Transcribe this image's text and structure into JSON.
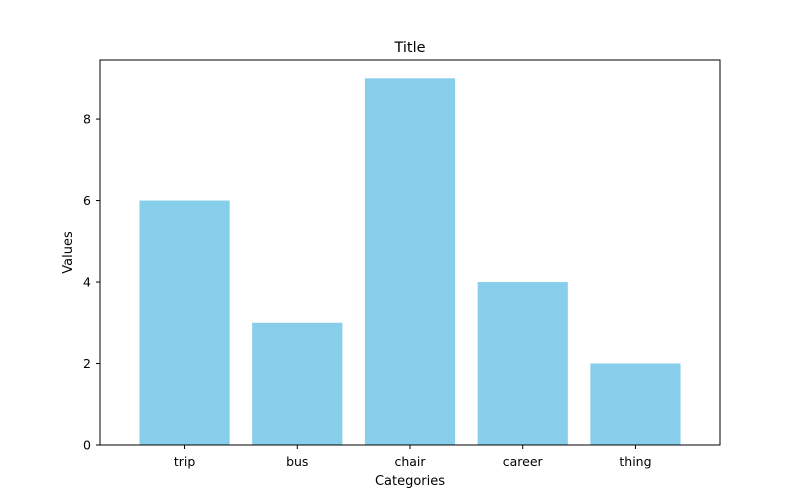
{
  "chart_data": {
    "type": "bar",
    "title": "Title",
    "xlabel": "Categories",
    "ylabel": "Values",
    "categories": [
      "trip",
      "bus",
      "chair",
      "career",
      "thing"
    ],
    "values": [
      6,
      3,
      9,
      4,
      2
    ],
    "yticks": [
      0,
      2,
      4,
      6,
      8
    ],
    "ylim": [
      0,
      9.45
    ],
    "bar_color": "#87ceeb",
    "grid": false,
    "legend": "none"
  }
}
